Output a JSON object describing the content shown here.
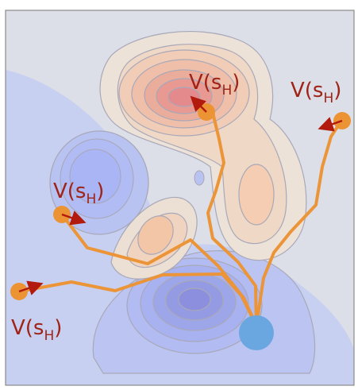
{
  "colors": {
    "background": "#dcdee8",
    "negative_region": "#c4cdf1",
    "negative_deep": "#a7b4f3",
    "negative_core": "#8d8fdd",
    "positive_light": "#ede1d7",
    "positive_mid": "#f4ccb0",
    "positive_core": "#e4898c",
    "contour_line": "#a8a8b8",
    "path": "#eb9538",
    "agent_node": "#ec9333",
    "start_node": "#6aa6df",
    "arrow": "#b11a0c",
    "label": "#9f2316",
    "frame": "#8a8a8a"
  },
  "value_label": {
    "main": "V(s",
    "subscript": "H",
    "close": ")"
  },
  "labels": [
    {
      "id": "top-center"
    },
    {
      "id": "top-right"
    },
    {
      "id": "middle-left"
    },
    {
      "id": "bottom-left"
    }
  ],
  "icons": {
    "start": "start-node-icon",
    "agent": "agent-node-icon",
    "gradient": "value-gradient-arrow-icon"
  }
}
